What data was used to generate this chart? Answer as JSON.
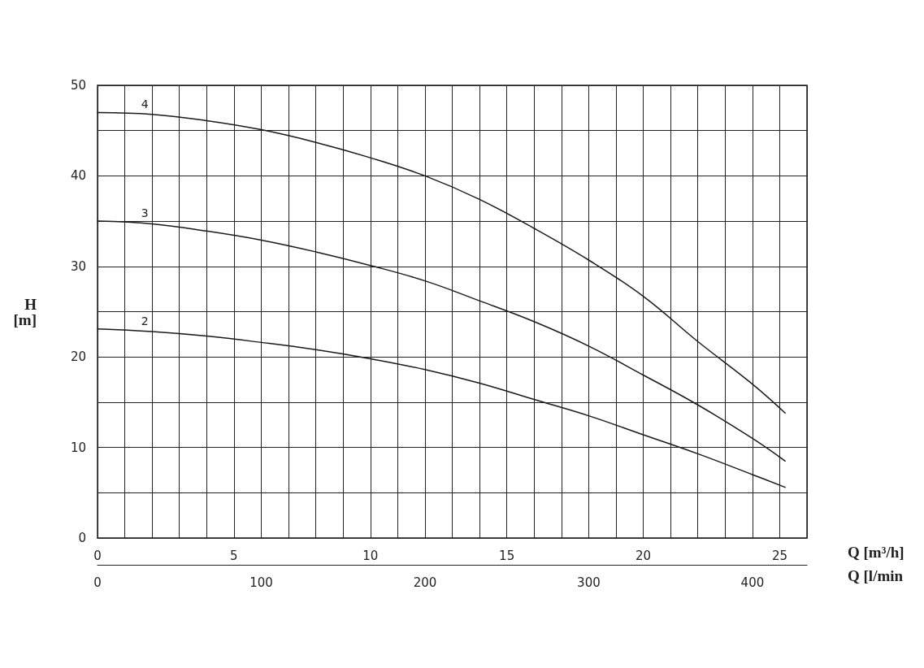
{
  "chart_data": {
    "type": "line",
    "xlabel": "Q [m³/h]",
    "x2label": "Q [l/min",
    "ylabel": "H\n[m]",
    "xlim": [
      0,
      26
    ],
    "xticks": [
      0,
      {
        "value": 1,
        "label": null
      },
      {
        "value": 2,
        "label": null
      },
      {
        "value": 3,
        "label": null
      },
      {
        "value": 4,
        "label": null
      },
      5,
      {
        "value": 6,
        "label": null
      },
      {
        "value": 7,
        "label": null
      },
      {
        "value": 8,
        "label": null
      },
      {
        "value": 9,
        "label": null
      },
      10,
      {
        "value": 11,
        "label": null
      },
      {
        "value": 12,
        "label": null
      },
      {
        "value": 13,
        "label": null
      },
      {
        "value": 14,
        "label": null
      },
      15,
      {
        "value": 16,
        "label": null
      },
      {
        "value": 17,
        "label": null
      },
      {
        "value": 18,
        "label": null
      },
      {
        "value": 19,
        "label": null
      },
      20,
      {
        "value": 21,
        "label": null
      },
      {
        "value": 22,
        "label": null
      },
      {
        "value": 23,
        "label": null
      },
      {
        "value": 24,
        "label": null
      },
      25,
      {
        "value": 26,
        "label": null
      }
    ],
    "x2lim": [
      0,
      433.3
    ],
    "x2ticks": [
      0,
      100,
      200,
      300,
      400
    ],
    "ylim": [
      0,
      50
    ],
    "yticks": [
      0,
      {
        "value": 5,
        "label": null
      },
      10,
      {
        "value": 15,
        "label": null
      },
      20,
      {
        "value": 25,
        "label": null
      },
      30,
      {
        "value": 35,
        "label": null
      },
      40,
      {
        "value": 45,
        "label": null
      },
      50
    ],
    "grid": true,
    "marker": "none",
    "line_style": "solid",
    "x": [
      0,
      2,
      4,
      6,
      8,
      10,
      12,
      14,
      16,
      18,
      20,
      22,
      24,
      25.2
    ],
    "series": [
      {
        "name": "4",
        "color": "#1a1a1a",
        "values": [
          47,
          46.8,
          46.1,
          45.1,
          43.7,
          42.0,
          40.0,
          37.4,
          34.2,
          30.7,
          26.7,
          21.7,
          17.0,
          13.8
        ]
      },
      {
        "name": "3",
        "color": "#1a1a1a",
        "values": [
          35,
          34.7,
          33.9,
          32.9,
          31.6,
          30.1,
          28.4,
          26.2,
          23.9,
          21.2,
          18.0,
          14.7,
          11.0,
          8.5
        ]
      },
      {
        "name": "2",
        "color": "#1a1a1a",
        "values": [
          23.1,
          22.8,
          22.3,
          21.6,
          20.8,
          19.8,
          18.6,
          17.1,
          15.3,
          13.5,
          11.4,
          9.3,
          7.0,
          5.6
        ]
      }
    ]
  }
}
